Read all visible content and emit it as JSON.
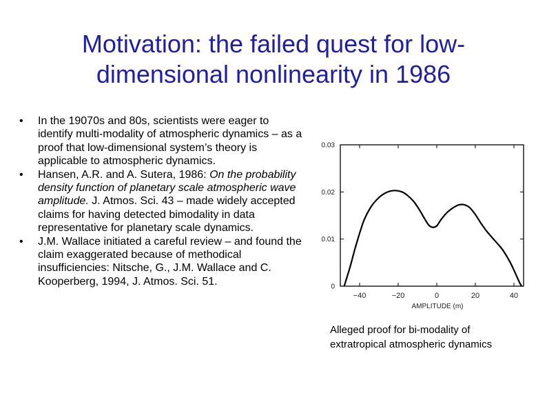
{
  "slide": {
    "title_line1": "Motivation: the failed quest for low-",
    "title_line2": "dimensional nonlinearity in 1986",
    "bullets": [
      {
        "text": "In the 19070s and 80s, scientists were eager to identify multi-modality of atmospheric dynamics – as a proof that low-dimensional system’s theory is applicable to atmospheric dynamics."
      },
      {
        "pre": "Hansen, A.R. and A. Sutera, 1986: ",
        "italic": "On the probability density function of planetary scale atmospheric wave amplitude.",
        "post": " J. Atmos. Sci. 43 – made widely accepted claims for having detected bimodality in data representative for planetary scale dynamics."
      },
      {
        "text": "J.M. Wallace initiated a careful review – and found the claim exaggerated because of methodical insufficiencies: Nitsche, G., J.M. Wallace and C. Kooperberg, 1994, J. Atmos. Sci. 51."
      }
    ],
    "bullet_glyph": "•",
    "caption_line1": "Alleged proof for bi-modality of",
    "caption_line2": "extratropical atmospheric dynamics"
  },
  "chart_data": {
    "type": "line",
    "xlabel": "AMPLITUDE (m)",
    "ylabel": "",
    "title": "",
    "xlim": [
      -50,
      45
    ],
    "ylim": [
      0,
      0.03
    ],
    "x_ticks": [
      -40,
      -20,
      0,
      20,
      40
    ],
    "x_tick_labels": [
      "−40",
      "−20",
      "0",
      "20",
      "40"
    ],
    "y_ticks": [
      0,
      0.01,
      0.02,
      0.03
    ],
    "y_tick_labels": [
      "0",
      "0.01",
      "0.02",
      "0.03"
    ],
    "grid": false,
    "series": [
      {
        "x": [
          -48,
          -45,
          -42,
          -38,
          -34,
          -30,
          -26,
          -22,
          -18,
          -15,
          -12,
          -9,
          -6,
          -4,
          -2,
          0,
          2,
          5,
          8,
          11,
          14,
          17,
          20,
          23,
          26,
          30,
          34,
          38,
          41,
          43,
          44
        ],
        "y": [
          0.0,
          0.004,
          0.0085,
          0.0137,
          0.0169,
          0.0188,
          0.0199,
          0.0203,
          0.02,
          0.0192,
          0.018,
          0.0162,
          0.0141,
          0.0129,
          0.0125,
          0.0128,
          0.014,
          0.0155,
          0.0165,
          0.0172,
          0.0173,
          0.0167,
          0.0152,
          0.0133,
          0.0116,
          0.0097,
          0.0078,
          0.0051,
          0.0025,
          0.0007,
          0.0
        ]
      }
    ]
  }
}
